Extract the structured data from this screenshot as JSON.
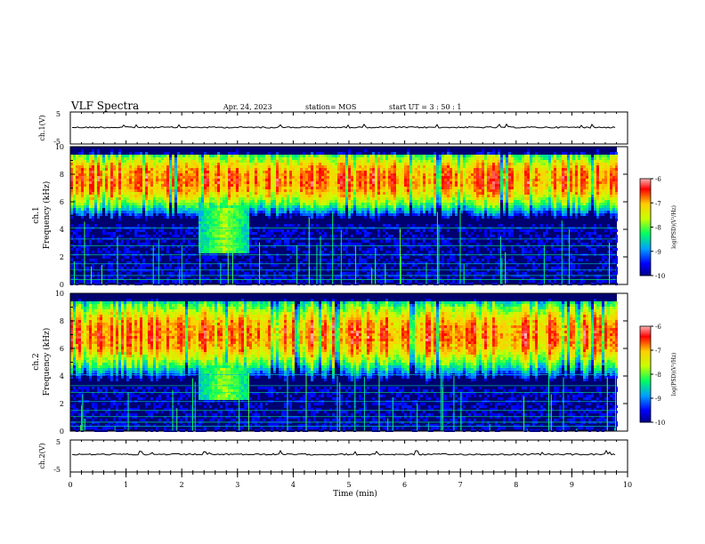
{
  "header": {
    "title": "VLF Spectra",
    "date": "Apr. 24, 2023",
    "station": "station= MOS",
    "start": "start  UT =   3  :  50 : 1"
  },
  "chart_data": [
    {
      "name": "ch1-waveform",
      "type": "line",
      "ylabel": "ch.1(V)",
      "yticks": [
        "5",
        "-5"
      ],
      "ylim": [
        -5,
        5
      ],
      "level": 0.2
    },
    {
      "name": "ch1-spectrogram",
      "type": "heatmap",
      "ylabel": "Frequency (kHz)",
      "ylabel_prefix": "ch.1",
      "yticks": [
        "0",
        "2",
        "4",
        "6",
        "8",
        "10"
      ],
      "ylim": [
        0,
        10
      ],
      "emission_band_khz": [
        5.5,
        9.5
      ],
      "event_window_min": [
        2.3,
        3.2
      ],
      "colorbar": {
        "label": "log(PSD)(V²/Hz)",
        "ticks": [
          "-6",
          "-7",
          "-8",
          "-9",
          "-10"
        ]
      }
    },
    {
      "name": "ch2-spectrogram",
      "type": "heatmap",
      "ylabel": "Frequency (kHz)",
      "ylabel_prefix": "ch.2",
      "yticks": [
        "0",
        "2",
        "4",
        "6",
        "8",
        "10"
      ],
      "ylim": [
        0,
        10
      ],
      "emission_band_khz": [
        4.5,
        9.5
      ],
      "event_window_min": [
        2.3,
        3.2
      ],
      "colorbar": {
        "label": "log(PSD)(V²/Hz)",
        "ticks": [
          "-6",
          "-7",
          "-8",
          "-9",
          "-10"
        ]
      }
    },
    {
      "name": "ch2-waveform",
      "type": "line",
      "ylabel": "ch.2(V)",
      "yticks": [
        "5",
        "-5"
      ],
      "ylim": [
        -5,
        5
      ],
      "level": 0.5
    }
  ],
  "xaxis": {
    "label": "Time (min)",
    "ticks": [
      "0",
      "1",
      "2",
      "3",
      "4",
      "5",
      "6",
      "7",
      "8",
      "9",
      "10"
    ],
    "xlim": [
      0,
      10
    ],
    "data_end_min": 9.8
  },
  "colors": {
    "scale": [
      "#000070",
      "#0000ff",
      "#00a0ff",
      "#00ff60",
      "#c8ff00",
      "#ffd000",
      "#ff0000",
      "#ffffff"
    ]
  }
}
